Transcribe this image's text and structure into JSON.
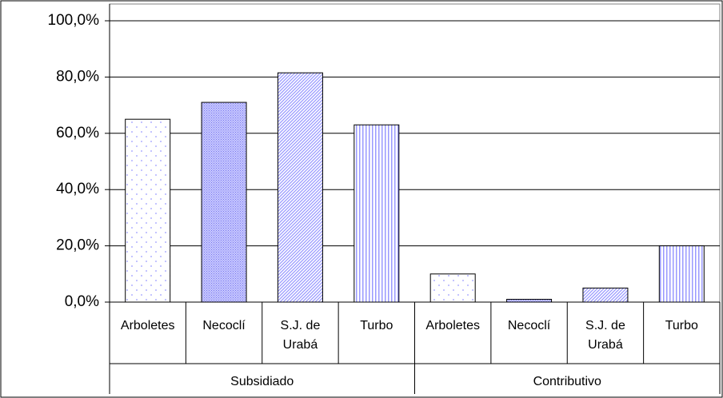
{
  "chart_data": {
    "type": "bar",
    "categories": [
      "Arboletes",
      "Necoclí",
      "S.J. de Urabá",
      "Turbo",
      "Arboletes",
      "Necoclí",
      "S.J. de Urabá",
      "Turbo"
    ],
    "groups": [
      "Subsidiado",
      "Contributivo"
    ],
    "values": [
      65,
      71,
      81.5,
      63,
      10,
      1,
      5,
      20
    ],
    "patterns": [
      "dots",
      "crosshatch",
      "diagonal",
      "vertical",
      "dots",
      "crosshatch",
      "diagonal",
      "vertical"
    ],
    "color": "#9999ff",
    "ylim": [
      0,
      100
    ],
    "yticks": [
      {
        "value": 0,
        "label": "0,0%"
      },
      {
        "value": 20,
        "label": "20,0%"
      },
      {
        "value": 40,
        "label": "40,0%"
      },
      {
        "value": 60,
        "label": "60,0%"
      },
      {
        "value": 80,
        "label": "80,0%"
      },
      {
        "value": 100,
        "label": "100,0%"
      }
    ],
    "grid": true
  }
}
